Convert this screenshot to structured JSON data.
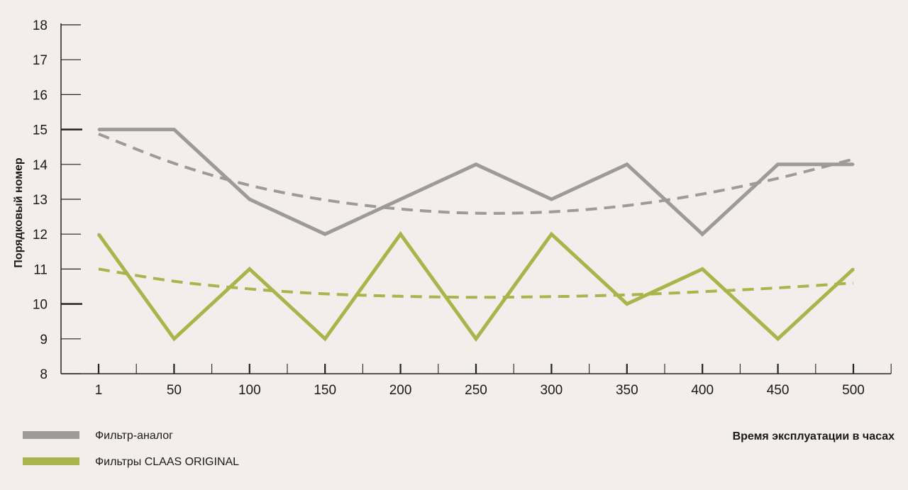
{
  "chart_data": {
    "type": "line",
    "xlabel": "Время эксплуатации в часах",
    "ylabel": "Порядковый номер",
    "categories": [
      "1",
      "50",
      "100",
      "150",
      "200",
      "250",
      "300",
      "350",
      "400",
      "450",
      "500"
    ],
    "ylim": [
      8,
      18
    ],
    "yticks": [
      8,
      9,
      10,
      11,
      12,
      13,
      14,
      15,
      16,
      17,
      18
    ],
    "grid": false,
    "legend_position": "bottom-left",
    "series": [
      {
        "name": "Фильтр-аналог",
        "color": "#9c9b98",
        "values": [
          15,
          15,
          13,
          12,
          13,
          14,
          13,
          14,
          12,
          14,
          14
        ],
        "trend": [
          14.87,
          14.03,
          13.4,
          12.98,
          12.72,
          12.6,
          12.64,
          12.82,
          13.15,
          13.6,
          14.15
        ]
      },
      {
        "name": "Фильтры CLAAS ORIGINAL",
        "color": "#a9b44a",
        "values": [
          12,
          9,
          11,
          9,
          12,
          9,
          12,
          10,
          11,
          9,
          11
        ],
        "trend": [
          11.0,
          10.65,
          10.43,
          10.29,
          10.22,
          10.19,
          10.21,
          10.26,
          10.35,
          10.46,
          10.6
        ]
      }
    ]
  }
}
